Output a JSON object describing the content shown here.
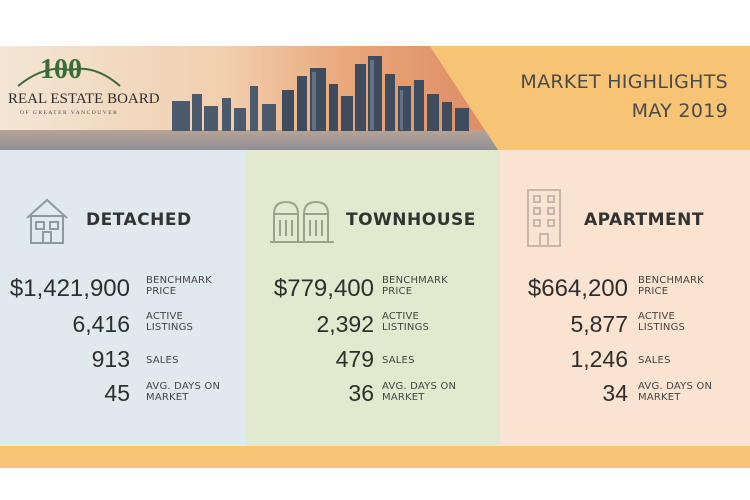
{
  "header": {
    "logo_number": "100",
    "logo_text": "REAL ESTATE BOARD",
    "logo_subtext": "OF GREATER VANCOUVER",
    "title_line1": "MARKET HIGHLIGHTS",
    "title_line2": "MAY 2019"
  },
  "colors": {
    "accent_orange": "#f7c375",
    "detached_bg": "#dfe9ee",
    "townhouse_bg": "#e2e9cf",
    "apartment_bg": "#fbe3d2"
  },
  "panels": [
    {
      "type": "DETACHED",
      "icon": "house-icon",
      "benchmark_price": "$1,421,900",
      "benchmark_label": [
        "BENCHMARK",
        "PRICE"
      ],
      "active_listings": "6,416",
      "active_label": [
        "ACTIVE",
        "LISTINGS"
      ],
      "sales": "913",
      "sales_label": "SALES",
      "days_on_market": "45",
      "days_label": [
        "AVG. DAYS ON",
        "MARKET"
      ]
    },
    {
      "type": "TOWNHOUSE",
      "icon": "townhouse-icon",
      "benchmark_price": "$779,400",
      "benchmark_label": [
        "BENCHMARK",
        "PRICE"
      ],
      "active_listings": "2,392",
      "active_label": [
        "ACTIVE",
        "LISTINGS"
      ],
      "sales": "479",
      "sales_label": "SALES",
      "days_on_market": "36",
      "days_label": [
        "AVG. DAYS ON",
        "MARKET"
      ]
    },
    {
      "type": "APARTMENT",
      "icon": "apartment-building-icon",
      "benchmark_price": "$664,200",
      "benchmark_label": [
        "BENCHMARK",
        "PRICE"
      ],
      "active_listings": "5,877",
      "active_label": [
        "ACTIVE",
        "LISTINGS"
      ],
      "sales": "1,246",
      "sales_label": "SALES",
      "days_on_market": "34",
      "days_label": [
        "AVG. DAYS ON",
        "MARKET"
      ]
    }
  ]
}
